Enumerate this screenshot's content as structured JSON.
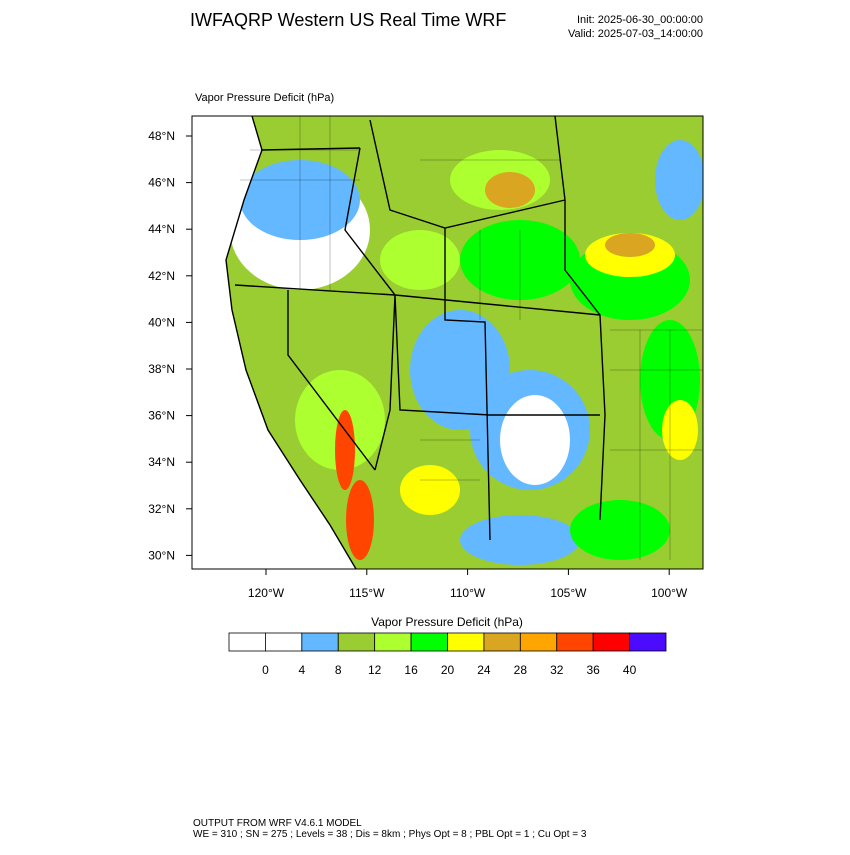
{
  "header": {
    "title": "IWFAQRP Western US Real Time WRF",
    "init": "Init: 2025-06-30_00:00:00",
    "valid": "Valid: 2025-07-03_14:00:00"
  },
  "plot": {
    "label": "Vapor Pressure Deficit   (hPa)"
  },
  "axes": {
    "lat_labels": [
      "48°N",
      "46°N",
      "44°N",
      "42°N",
      "40°N",
      "38°N",
      "36°N",
      "34°N",
      "32°N",
      "30°N"
    ],
    "lon_labels": [
      "120°W",
      "115°W",
      "110°W",
      "105°W",
      "100°W"
    ]
  },
  "colorbar": {
    "title": "Vapor Pressure Deficit  (hPa)",
    "labels": [
      0,
      4,
      8,
      12,
      16,
      20,
      24,
      28,
      32,
      36,
      40
    ],
    "colors": [
      "#ffffff",
      "#ffffff",
      "#63b8ff",
      "#9acd32",
      "#adff2f",
      "#00ff00",
      "#ffff00",
      "#daa520",
      "#ffa500",
      "#ff4500",
      "#ff0000",
      "#4b0bff"
    ]
  },
  "footer": {
    "lines": [
      "OUTPUT FROM WRF V4.6.1 MODEL",
      "WE = 310 ; SN = 275 ; Levels = 38 ; Dis = 8km ; Phys Opt = 8 ; PBL Opt = 1 ; Cu Opt = 3"
    ]
  }
}
